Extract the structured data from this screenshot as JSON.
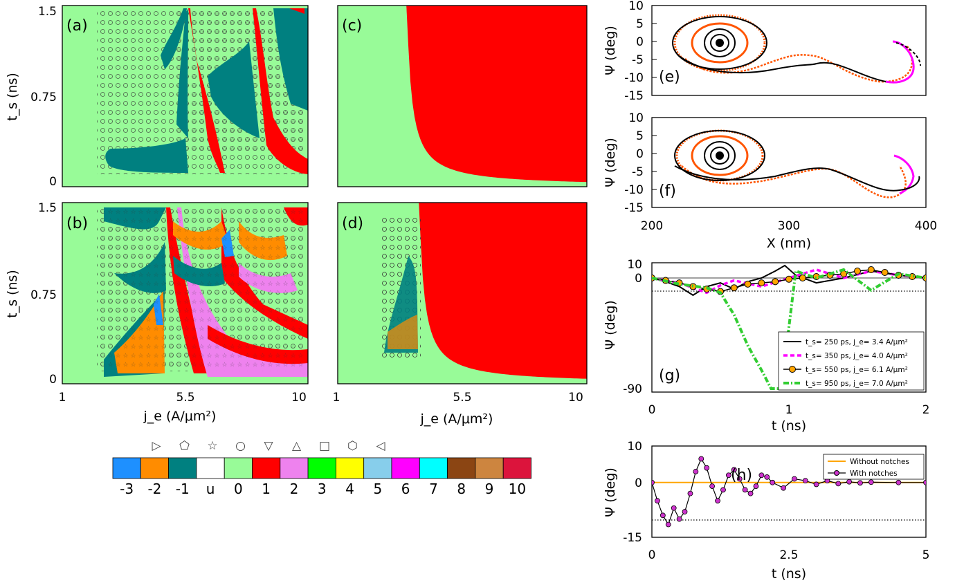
{
  "panels": {
    "a": {
      "label": "(a)"
    },
    "b": {
      "label": "(b)"
    },
    "c": {
      "label": "(c)"
    },
    "d": {
      "label": "(d)"
    },
    "e": {
      "label": "(e)"
    },
    "f": {
      "label": "(f)"
    },
    "g": {
      "label": "(g)"
    },
    "h": {
      "label": "(h)"
    }
  },
  "maps": {
    "xlabel": "j_e (A/μm²)",
    "ylabel": "t_s (ns)",
    "xticks": [
      "1",
      "5.5",
      "10"
    ],
    "yticks": [
      "0",
      "0.75",
      "1.5"
    ]
  },
  "trajectory": {
    "xlabel": "X (nm)",
    "ylabel": "Ψ (deg)",
    "xticks": [
      "200",
      "300",
      "400"
    ],
    "yticks": [
      "10",
      "5",
      "0",
      "-5",
      "-10",
      "-15"
    ]
  },
  "colorbar": {
    "labels": [
      "-3",
      "-2",
      "-1",
      "u",
      "0",
      "1",
      "2",
      "3",
      "4",
      "5",
      "6",
      "7",
      "8",
      "9",
      "10"
    ],
    "colors": [
      "#1e90ff",
      "#ff8c00",
      "#008080",
      "#ffffff",
      "#98fb98",
      "#ff0000",
      "#ee82ee",
      "#00ff00",
      "#ffff00",
      "#87ceeb",
      "#ff00ff",
      "#00ffff",
      "#8b4513",
      "#cd853f",
      "#dc143c"
    ],
    "markers": [
      "right-triangle-icon",
      "pentagon-icon",
      "star-icon",
      "circle-icon",
      "down-triangle-icon",
      "up-triangle-icon",
      "square-icon",
      "hexagon-icon",
      "left-triangle-icon"
    ],
    "marker_glyphs": [
      "▷",
      "⬠",
      "☆",
      "○",
      "▽",
      "△",
      "□",
      "⬡",
      "◁"
    ]
  },
  "chart_data": [
    {
      "panel": "a",
      "type": "heatmap",
      "x_label": "j_e (A/μm²)",
      "y_label": "t_s (ns)",
      "xlim": [
        1,
        10
      ],
      "ylim": [
        0,
        1.5
      ]
    },
    {
      "panel": "b",
      "type": "heatmap",
      "x_label": "j_e (A/μm²)",
      "y_label": "t_s (ns)",
      "xlim": [
        1,
        10
      ],
      "ylim": [
        0,
        1.5
      ]
    },
    {
      "panel": "c",
      "type": "heatmap",
      "x_label": "j_e (A/μm²)",
      "y_label": "t_s (ns)",
      "xlim": [
        1,
        10
      ],
      "ylim": [
        0,
        1.5
      ]
    },
    {
      "panel": "d",
      "type": "heatmap",
      "x_label": "j_e (A/μm²)",
      "y_label": "t_s (ns)",
      "xlim": [
        1,
        10
      ],
      "ylim": [
        0,
        1.5
      ]
    },
    {
      "panel": "e",
      "type": "line",
      "xlabel": "X (nm)",
      "ylabel": "Ψ (deg)",
      "xlim": [
        200,
        400
      ],
      "ylim": [
        -15,
        10
      ]
    },
    {
      "panel": "f",
      "type": "line",
      "xlabel": "X (nm)",
      "ylabel": "Ψ (deg)",
      "xlim": [
        200,
        400
      ],
      "ylim": [
        -15,
        10
      ]
    },
    {
      "panel": "g",
      "type": "line",
      "xlabel": "t (ns)",
      "ylabel": "Ψ (deg)",
      "xlim": [
        0,
        2
      ],
      "xticks": [
        "0",
        "1",
        "2"
      ],
      "yticks": [
        "10",
        "0",
        "-90"
      ],
      "legend_position": "bottom-right",
      "series": [
        {
          "name": "t_s= 250 ps, j_e= 3.4 A/μm²",
          "color": "#000000",
          "x": [
            0,
            0.1,
            0.2,
            0.3,
            0.4,
            0.5,
            0.6,
            0.7,
            0.8,
            0.9,
            0.97,
            1.05,
            1.2,
            1.4,
            1.6,
            1.8,
            2.0
          ],
          "y": [
            0,
            -3,
            -7,
            -14,
            -7,
            -4,
            -9,
            -3,
            0,
            5,
            9,
            2,
            -4,
            0,
            5,
            2,
            0
          ]
        },
        {
          "name": "t_s= 350 ps, j_e= 4.0 A/μm²",
          "color": "#ff00ff",
          "x": [
            0,
            0.2,
            0.4,
            0.5,
            0.6,
            0.8,
            1.0,
            1.2,
            1.4,
            1.6,
            1.8,
            2.0
          ],
          "y": [
            0,
            -4,
            -12,
            -6,
            -2,
            -7,
            0,
            6,
            0,
            5,
            2,
            0
          ]
        },
        {
          "name": "t_s= 550 ps, j_e= 6.1 A/μm²",
          "color": "#ffa500",
          "x": [
            0,
            0.1,
            0.2,
            0.3,
            0.4,
            0.5,
            0.6,
            0.7,
            0.8,
            0.9,
            1.0,
            1.1,
            1.2,
            1.3,
            1.4,
            1.5,
            1.6,
            1.7,
            1.8,
            1.9,
            2.0
          ],
          "y": [
            0,
            -2,
            -4,
            -7,
            -9,
            -11,
            -8,
            -5,
            -4,
            -3,
            -1,
            0,
            1,
            2,
            3,
            5,
            6,
            4,
            2,
            1,
            0
          ]
        },
        {
          "name": "t_s= 950 ps, j_e= 7.0 A/μm²",
          "color": "#32cd32",
          "x": [
            0,
            0.2,
            0.4,
            0.5,
            0.6,
            0.7,
            0.8,
            0.87,
            0.95,
            1.0,
            1.05,
            1.2,
            1.4,
            1.6,
            1.8,
            2.0
          ],
          "y": [
            0,
            -5,
            -8,
            -12,
            -30,
            -55,
            -75,
            -90,
            -90,
            -40,
            5,
            0,
            6,
            -10,
            3,
            0
          ]
        }
      ]
    },
    {
      "panel": "h",
      "type": "line",
      "xlabel": "t (ns)",
      "ylabel": "Ψ (deg)",
      "xlim": [
        0,
        5
      ],
      "ylim": [
        -15,
        10
      ],
      "xticks": [
        "0",
        "2.5",
        "5"
      ],
      "yticks": [
        "10",
        "0",
        "-15"
      ],
      "legend_position": "top-right",
      "series": [
        {
          "name": "Without notches",
          "color": "#ffa500",
          "x": [
            0,
            5
          ],
          "y": [
            0,
            0
          ]
        },
        {
          "name": "With notches",
          "color": "#cc33cc",
          "x": [
            0,
            0.1,
            0.2,
            0.3,
            0.4,
            0.5,
            0.6,
            0.7,
            0.8,
            0.9,
            1.0,
            1.1,
            1.2,
            1.3,
            1.4,
            1.5,
            1.6,
            1.7,
            1.8,
            1.9,
            2.0,
            2.1,
            2.2,
            2.4,
            2.6,
            2.8,
            3.0,
            3.2,
            3.4,
            3.6,
            3.8,
            4.0,
            4.5,
            5.0
          ],
          "y": [
            0,
            -5,
            -9,
            -11.5,
            -7,
            -10,
            -8,
            -3,
            3,
            6.5,
            4,
            -1,
            -5,
            -2,
            2,
            3.5,
            1,
            -2,
            -3,
            -1,
            2,
            1.5,
            0,
            -1.5,
            1,
            0.5,
            -0.5,
            0.5,
            -0.3,
            0.2,
            -0.1,
            0.1,
            0,
            0
          ]
        }
      ]
    }
  ]
}
